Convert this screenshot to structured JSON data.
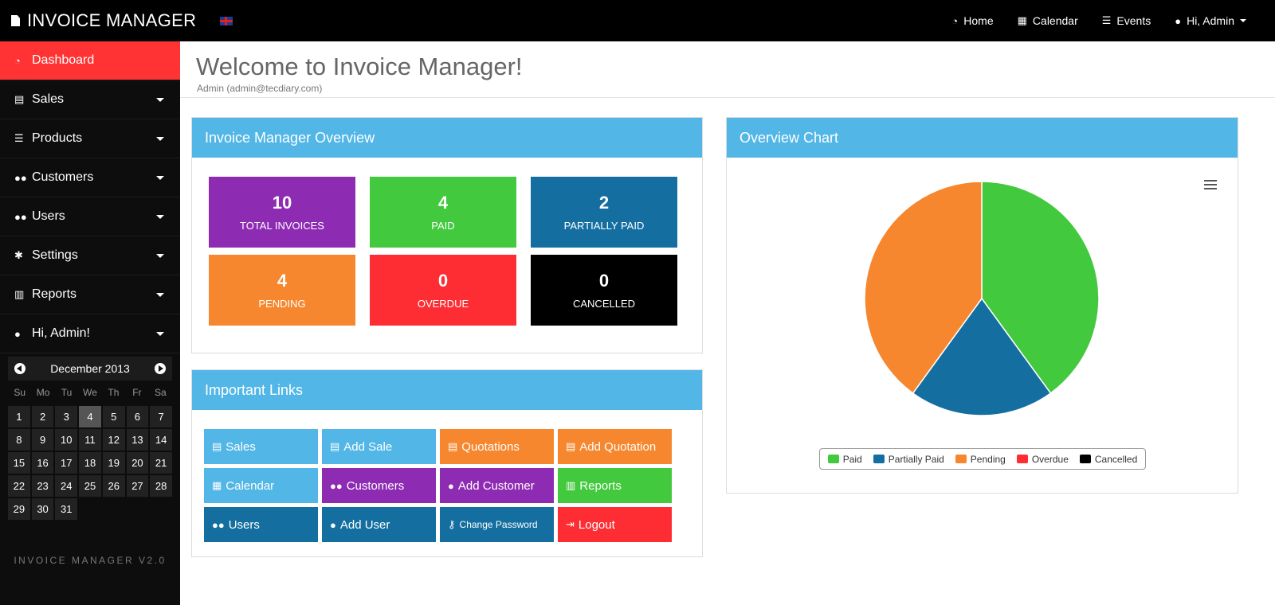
{
  "app": {
    "brand": "INVOICE MANAGER",
    "version": "INVOICE MANAGER V2.0"
  },
  "topnav": {
    "home": "Home",
    "calendar": "Calendar",
    "events": "Events",
    "user": "Hi, Admin"
  },
  "sidebar": {
    "items": [
      {
        "label": "Dashboard",
        "icon": "dashboard-icon"
      },
      {
        "label": "Sales",
        "icon": "file-icon"
      },
      {
        "label": "Products",
        "icon": "list-icon"
      },
      {
        "label": "Customers",
        "icon": "users-icon"
      },
      {
        "label": "Users",
        "icon": "users-icon"
      },
      {
        "label": "Settings",
        "icon": "gear-icon"
      },
      {
        "label": "Reports",
        "icon": "bar-chart-icon"
      },
      {
        "label": "Hi, Admin!",
        "icon": "user-icon"
      }
    ]
  },
  "calendar": {
    "month": "December 2013",
    "weekdays": [
      "Su",
      "Mo",
      "Tu",
      "We",
      "Th",
      "Fr",
      "Sa"
    ],
    "days": [
      "1",
      "2",
      "3",
      "4",
      "5",
      "6",
      "7",
      "8",
      "9",
      "10",
      "11",
      "12",
      "13",
      "14",
      "15",
      "16",
      "17",
      "18",
      "19",
      "20",
      "21",
      "22",
      "23",
      "24",
      "25",
      "26",
      "27",
      "28",
      "29",
      "30",
      "31"
    ],
    "today": "4"
  },
  "header": {
    "title": "Welcome to Invoice Manager!",
    "subtitle": "Admin (admin@tecdiary.com)"
  },
  "overview": {
    "title": "Invoice Manager Overview",
    "tiles": [
      {
        "value": "10",
        "label": "TOTAL INVOICES",
        "color": "#8e2bb3"
      },
      {
        "value": "4",
        "label": "PAID",
        "color": "#43c93d"
      },
      {
        "value": "2",
        "label": "PARTIALLY PAID",
        "color": "#146fa0"
      },
      {
        "value": "4",
        "label": "PENDING",
        "color": "#f6872e"
      },
      {
        "value": "0",
        "label": "OVERDUE",
        "color": "#fe2d33"
      },
      {
        "value": "0",
        "label": "CANCELLED",
        "color": "#000000"
      }
    ]
  },
  "links": {
    "title": "Important Links",
    "items": [
      {
        "label": "Sales",
        "icon": "file-icon",
        "color": "#52b6e6"
      },
      {
        "label": "Add Sale",
        "icon": "file-icon",
        "color": "#52b6e6"
      },
      {
        "label": "Quotations",
        "icon": "file-icon",
        "color": "#f6872e"
      },
      {
        "label": "Add Quotation",
        "icon": "file-icon",
        "color": "#f6872e"
      },
      {
        "label": "Calendar",
        "icon": "calendar-icon",
        "color": "#52b6e6"
      },
      {
        "label": "Customers",
        "icon": "users-icon",
        "color": "#8e2bb3"
      },
      {
        "label": "Add Customer",
        "icon": "user-icon",
        "color": "#8e2bb3"
      },
      {
        "label": "Reports",
        "icon": "bar-chart-icon",
        "color": "#43c93d"
      },
      {
        "label": "Users",
        "icon": "users-icon",
        "color": "#146fa0"
      },
      {
        "label": "Add User",
        "icon": "user-icon",
        "color": "#146fa0"
      },
      {
        "label": "Change Password",
        "icon": "key-icon",
        "color": "#146fa0"
      },
      {
        "label": "Logout",
        "icon": "logout-icon",
        "color": "#fe2d33"
      }
    ]
  },
  "chart_panel": {
    "title": "Overview Chart"
  },
  "chart_data": {
    "type": "pie",
    "title": "",
    "slices": [
      {
        "name": "Paid",
        "value": 4,
        "color": "#43c93d"
      },
      {
        "name": "Partially Paid",
        "value": 2,
        "color": "#146fa0"
      },
      {
        "name": "Pending",
        "value": 4,
        "color": "#f6872e"
      },
      {
        "name": "Overdue",
        "value": 0,
        "color": "#fe2d33"
      },
      {
        "name": "Cancelled",
        "value": 0,
        "color": "#000000"
      }
    ],
    "legend_position": "bottom"
  }
}
